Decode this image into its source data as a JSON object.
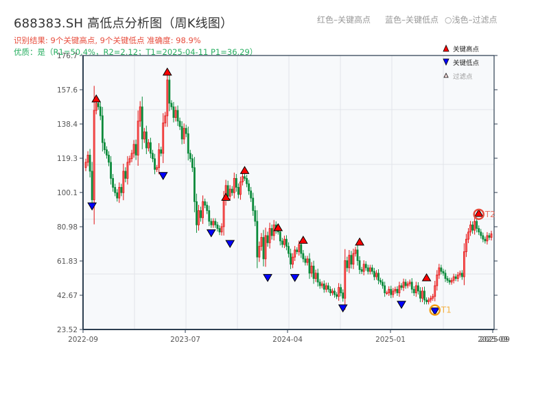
{
  "header": {
    "title": "688383.SH 高低点分析图（周K线图）",
    "result_line": "识别结果: 9个关键高点, 9个关键低点  准确度: 98.9%",
    "quality_line": "优质：是（R1=50.4%，R2=2.12；T1=2025-04-11 P1=36.29）",
    "top_legend": {
      "red": "红色–关键高点",
      "blue": "蓝色–关键低点",
      "light": "○浅色–过滤点"
    }
  },
  "legend": {
    "high": "关键高点",
    "low": "关键低点",
    "filtered": "过滤点"
  },
  "colors": {
    "up": "#e01010",
    "down": "#0a8a3a",
    "high_marker": "#ff0000",
    "low_marker": "#0000ff",
    "t1_ring": "#f39c12",
    "t2_ring": "#e74c3c",
    "axis": "#2c3e50",
    "grid": "#e1e4e8",
    "plot_bg": "#f7f9fb"
  },
  "chart_data": {
    "type": "candlestick",
    "title": "688383.SH 高低点分析图（周K线图）",
    "xlabel": "",
    "ylabel": "",
    "ylim": [
      23.52,
      176.7
    ],
    "y_ticks": [
      "176.7",
      "157.6",
      "138.4",
      "119.3",
      "100.1",
      "80.98",
      "61.83",
      "42.67",
      "23.52"
    ],
    "x_ticks": [
      "2022-09",
      "2023-07",
      "2024-04",
      "2025-01",
      "2025-09"
    ],
    "grid": true,
    "legend_position": "upper right",
    "closes": [
      117,
      121,
      112,
      96,
      146,
      150,
      148,
      143,
      128,
      124,
      121,
      117,
      108,
      103,
      100,
      97,
      103,
      100,
      112,
      108,
      117,
      119,
      122,
      127,
      121,
      140,
      148,
      130,
      134,
      125,
      128,
      122,
      119,
      113,
      114,
      124,
      122,
      139,
      143,
      163,
      150,
      148,
      142,
      146,
      140,
      137,
      130,
      136,
      133,
      122,
      119,
      114,
      95,
      82,
      90,
      86,
      95,
      93,
      90,
      84,
      82,
      84,
      82,
      80,
      78,
      81,
      96,
      104,
      98,
      102,
      100,
      108,
      103,
      99,
      106,
      109,
      108,
      105,
      101,
      97,
      90,
      84,
      64,
      70,
      75,
      63,
      76,
      72,
      80,
      76,
      82,
      79,
      78,
      73,
      71,
      74,
      70,
      66,
      60,
      64,
      68,
      67,
      71,
      66,
      63,
      61,
      63,
      55,
      59,
      52,
      55,
      50,
      48,
      49,
      46,
      48,
      46,
      44,
      45,
      43,
      42,
      47,
      44,
      41,
      62,
      58,
      65,
      60,
      66,
      68,
      62,
      57,
      56,
      60,
      58,
      56,
      58,
      56,
      53,
      55,
      51,
      50,
      48,
      44,
      44,
      46,
      43,
      45,
      46,
      44,
      48,
      47,
      50,
      48,
      49,
      50,
      46,
      44,
      48,
      45,
      41,
      45,
      40,
      39,
      40,
      41,
      42,
      48,
      54,
      58,
      56,
      55,
      52,
      51,
      50,
      51,
      53,
      52,
      54,
      55,
      53,
      67,
      74,
      78,
      82,
      79,
      84,
      80,
      78,
      76,
      74,
      73,
      76,
      75,
      77
    ],
    "key_highs": [
      {
        "index": 5,
        "price": 150
      },
      {
        "index": 39,
        "price": 165
      },
      {
        "index": 67,
        "price": 95
      },
      {
        "index": 76,
        "price": 110
      },
      {
        "index": 92,
        "price": 78
      },
      {
        "index": 104,
        "price": 71
      },
      {
        "index": 131,
        "price": 70
      },
      {
        "index": 163,
        "price": 50
      },
      {
        "index": 188,
        "price": 86
      }
    ],
    "key_lows": [
      {
        "index": 3,
        "price": 95
      },
      {
        "index": 37,
        "price": 112
      },
      {
        "index": 60,
        "price": 80
      },
      {
        "index": 69,
        "price": 74
      },
      {
        "index": 87,
        "price": 55
      },
      {
        "index": 100,
        "price": 55
      },
      {
        "index": 123,
        "price": 38
      },
      {
        "index": 151,
        "price": 40
      },
      {
        "index": 167,
        "price": 36.29
      }
    ],
    "annotations": [
      {
        "label": "T1",
        "index": 167,
        "price": 36.29,
        "date": "2025-04-11"
      },
      {
        "label": "T2",
        "index": 188,
        "price": 86
      }
    ]
  }
}
